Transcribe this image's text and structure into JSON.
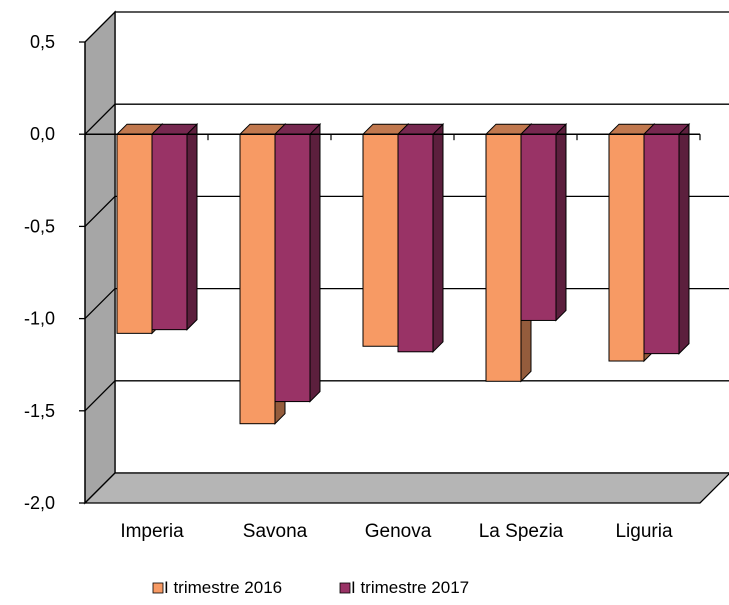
{
  "chart_data": {
    "type": "bar",
    "title": "",
    "xlabel": "",
    "ylabel": "",
    "categories": [
      "Imperia",
      "Savona",
      "Genova",
      "La Spezia",
      "Liguria"
    ],
    "series": [
      {
        "name": "I trimestre 2016",
        "values": [
          -1.08,
          -1.57,
          -1.15,
          -1.34,
          -1.23
        ],
        "color": "#F79A64"
      },
      {
        "name": "I trimestre 2017",
        "values": [
          -1.06,
          -1.45,
          -1.18,
          -1.01,
          -1.19
        ],
        "color": "#993366"
      }
    ],
    "ylim": [
      -2.0,
      0.5
    ],
    "yticks": [
      "0,5",
      "0,0",
      "-0,5",
      "-1,0",
      "-1,5",
      "-2,0"
    ],
    "ytick_values": [
      0.5,
      0.0,
      -0.5,
      -1.0,
      -1.5,
      -2.0
    ],
    "grid": true,
    "style": "3d",
    "legend_position": "bottom"
  }
}
